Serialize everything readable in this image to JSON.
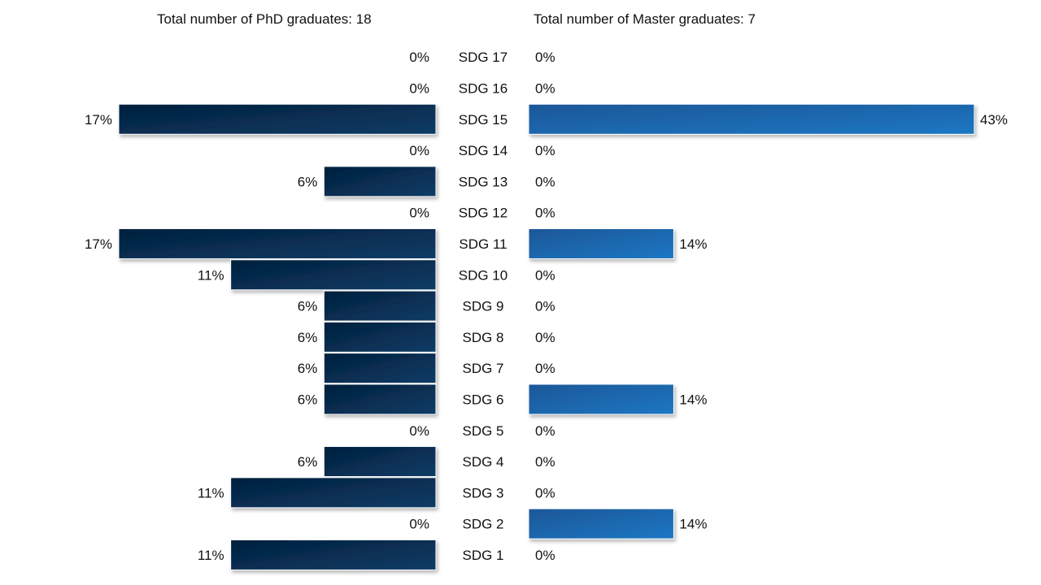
{
  "chart_data": {
    "type": "bar",
    "orientation": "horizontal-butterfly",
    "title_left": "Total number of PhD graduates: 18",
    "title_right": "Total number of Master graduates: 7",
    "categories": [
      "SDG 17",
      "SDG 16",
      "SDG 15",
      "SDG 14",
      "SDG 13",
      "SDG 12",
      "SDG 11",
      "SDG 10",
      "SDG 9",
      "SDG 8",
      "SDG 7",
      "SDG 6",
      "SDG 5",
      "SDG 4",
      "SDG 3",
      "SDG 2",
      "SDG 1"
    ],
    "series": [
      {
        "name": "PhD",
        "side": "left",
        "color_start": "#03203d",
        "color_end": "#0b3a63",
        "values": [
          0,
          0,
          17,
          0,
          6,
          0,
          17,
          11,
          6,
          6,
          6,
          6,
          0,
          6,
          11,
          0,
          11
        ],
        "labels": [
          "0%",
          "0%",
          "17%",
          "0%",
          "6%",
          "0%",
          "17%",
          "11%",
          "6%",
          "6%",
          "6%",
          "6%",
          "0%",
          "6%",
          "11%",
          "0%",
          "11%"
        ]
      },
      {
        "name": "Master",
        "side": "right",
        "color_start": "#1e5a9c",
        "color_end": "#1a75c2",
        "values": [
          0,
          0,
          43,
          0,
          0,
          0,
          14,
          0,
          0,
          0,
          0,
          14,
          0,
          0,
          0,
          14,
          0
        ],
        "labels": [
          "0%",
          "0%",
          "43%",
          "0%",
          "0%",
          "0%",
          "14%",
          "0%",
          "0%",
          "0%",
          "0%",
          "14%",
          "0%",
          "0%",
          "0%",
          "14%",
          "0%"
        ]
      }
    ],
    "unit": "%",
    "grid": false,
    "legend": "none"
  }
}
